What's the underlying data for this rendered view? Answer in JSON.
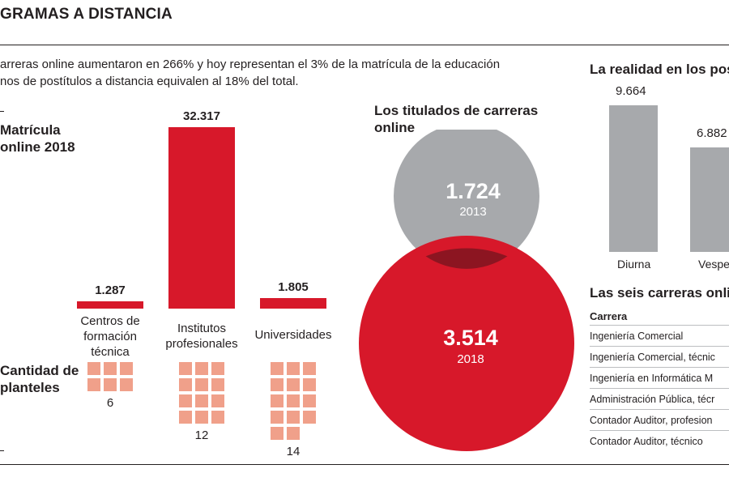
{
  "header": {
    "title": "GRAMAS A DISTANCIA",
    "intro_line1": "arreras online aumentaron en 266% y hoy representan el 3% de la matrícula de la educación",
    "intro_line2": "nos de postítulos a distancia equivalen al 18% del total."
  },
  "matricula": {
    "heading_line1": "Matrícula",
    "heading_line2": "online 2018",
    "planteles_line1": "Cantidad de",
    "planteles_line2": "planteles"
  },
  "titulados": {
    "heading_line1": "Los titulados de carreras",
    "heading_line2": "online"
  },
  "realidad": {
    "heading": "La realidad en los pos"
  },
  "carreras": {
    "heading": "Las seis carreras onli",
    "column": "Carrera",
    "rows": [
      "Ingeniería Comercial",
      "Ingeniería Comercial, técnic",
      "Ingeniería en Informática M",
      "Administración Pública, técr",
      "Contador Auditor, profesion",
      "Contador Auditor, técnico"
    ]
  },
  "colors": {
    "accent_red": "#d7182a",
    "grey": "#a7a9ac",
    "squares": "#f0a08a"
  },
  "chart_data": [
    {
      "type": "bar",
      "categories": [
        "Centros de formación técnica",
        "Institutos profesionales",
        "Universidades"
      ],
      "category_lines": [
        [
          "Centros de",
          "formación",
          "técnica"
        ],
        [
          "Institutos",
          "profesionales"
        ],
        [
          "Universidades"
        ]
      ],
      "values": [
        1287,
        32317,
        1805
      ],
      "value_labels": [
        "1.287",
        "32.317",
        "1.805"
      ],
      "plantel_counts": [
        6,
        12,
        14
      ],
      "plantel_labels": [
        "6",
        "12",
        "14"
      ]
    },
    {
      "type": "bubble",
      "items": [
        {
          "label": "1.724",
          "year": "2013",
          "value": 1724,
          "color": "#a7a9ac"
        },
        {
          "label": "3.514",
          "year": "2018",
          "value": 3514,
          "color": "#d7182a"
        }
      ]
    },
    {
      "type": "bar",
      "categories": [
        "Diurna",
        "Vespert"
      ],
      "values": [
        9664,
        6882
      ],
      "value_labels": [
        "9.664",
        "6.882"
      ]
    }
  ]
}
